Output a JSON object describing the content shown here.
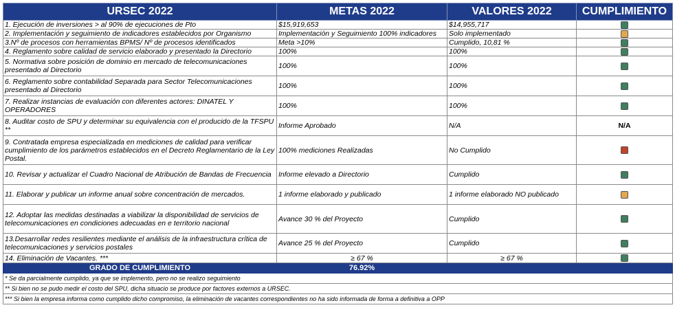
{
  "header": {
    "col1": "URSEC 2022",
    "col2": "METAS 2022",
    "col3": "VALORES 2022",
    "col4": "CUMPLIMIENTO"
  },
  "rows": [
    {
      "item": "1. Ejecución de inversiones > al 90% de ejecuciones de Pto",
      "meta": "$15,919,653",
      "valor": "$14,955,717",
      "status": "green"
    },
    {
      "item": "2. Implementación y seguimiento de indicadores establecidos por Organismo",
      "meta": "Implementación y Seguimiento 100% indicadores",
      "valor": "Solo implementado",
      "status": "amber"
    },
    {
      "item": "3.Nº de procesos con herramientas BPMS/ Nº de procesos identificados",
      "meta": "Meta >10%",
      "valor": "Cumplido, 10,81 %",
      "status": "green"
    },
    {
      "item": "4. Reglamento sobre calidad de servicio elaborado y presentado la Directorio",
      "meta": "100%",
      "valor": "100%",
      "status": "green"
    },
    {
      "item": "5. Normativa sobre posición de dominio en mercado de telecomunicaciones presentado al Directorio",
      "meta": "100%",
      "valor": "100%",
      "status": "green"
    },
    {
      "item": "6. Reglamento sobre contabilidad Separada para Sector Telecomunicaciones presentado al Directorio",
      "meta": "100%",
      "valor": "100%",
      "status": "green"
    },
    {
      "item": "7. Realizar instancias de evaluación con diferentes actores: DINATEL Y OPERADORES",
      "meta": "100%",
      "valor": "100%",
      "status": "green"
    },
    {
      "item": "8. Auditar costo de SPU y determinar su equivalencia con el producido de la TFSPU **",
      "meta": "Informe Aprobado",
      "valor": "N/A",
      "status": "na",
      "status_text": "N/A"
    },
    {
      "item": "9. Contratada empresa especializada en mediciones de calidad para verificar cumplimiento de los parámetros establecidos en el Decreto Reglamentario de la Ley Postal.",
      "meta": "100% mediciones Realizadas",
      "valor": "No Cumplido",
      "status": "red"
    },
    {
      "item": "10. Revisar y actualizar el Cuadro Nacional de Atribución de Bandas de Frecuencia",
      "meta": "Informe elevado a Directorio",
      "valor": "Cumplido",
      "status": "green"
    },
    {
      "item": "11. Elaborar y publicar un informe anual sobre concentración de mercados.",
      "meta": "1 informe elaborado y publicado",
      "valor": "1 informe elaborado NO publicado",
      "status": "amber"
    },
    {
      "item": "12. Adoptar las medidas destinadas a viabilizar la disponibilidad de servicios de telecomunicaciones en condiciones adecuadas en e territorio nacional",
      "meta": "Avance 30 % del Proyecto",
      "valor": "Cumplido",
      "status": "green"
    },
    {
      "item": "13.Desarrollar redes resilientes mediante el análisis de la infraestructura crítica de telecomunicaciones y servicios postales",
      "meta": "Avance 25 % del Proyecto",
      "valor": "Cumplido",
      "status": "green"
    },
    {
      "item": "14. Eliminación de Vacantes. ***",
      "meta": "≥ 67 %",
      "valor": "≥ 67 %",
      "status": "green"
    }
  ],
  "total": {
    "label": "GRADO DE CUMPLIMIENTO",
    "value": "76.92%"
  },
  "notes": [
    "* Se da parcialmente cumplido, ya que se implemento, pero no se realizo seguimiento",
    "** Si bien no se pudo medir el costo del SPU, dicha situacio se produce por factores externos a URSEC.",
    "*** Si bien la empresa informa como cumplido dicho compromiso, la eliminación de vacantes correspondientes no ha sido informada de forma a definitiva a OPP"
  ],
  "colors": {
    "header_bg": "#1f3c8a",
    "green": "#3f7f5f",
    "amber": "#e0a84f",
    "red": "#c0452a"
  }
}
